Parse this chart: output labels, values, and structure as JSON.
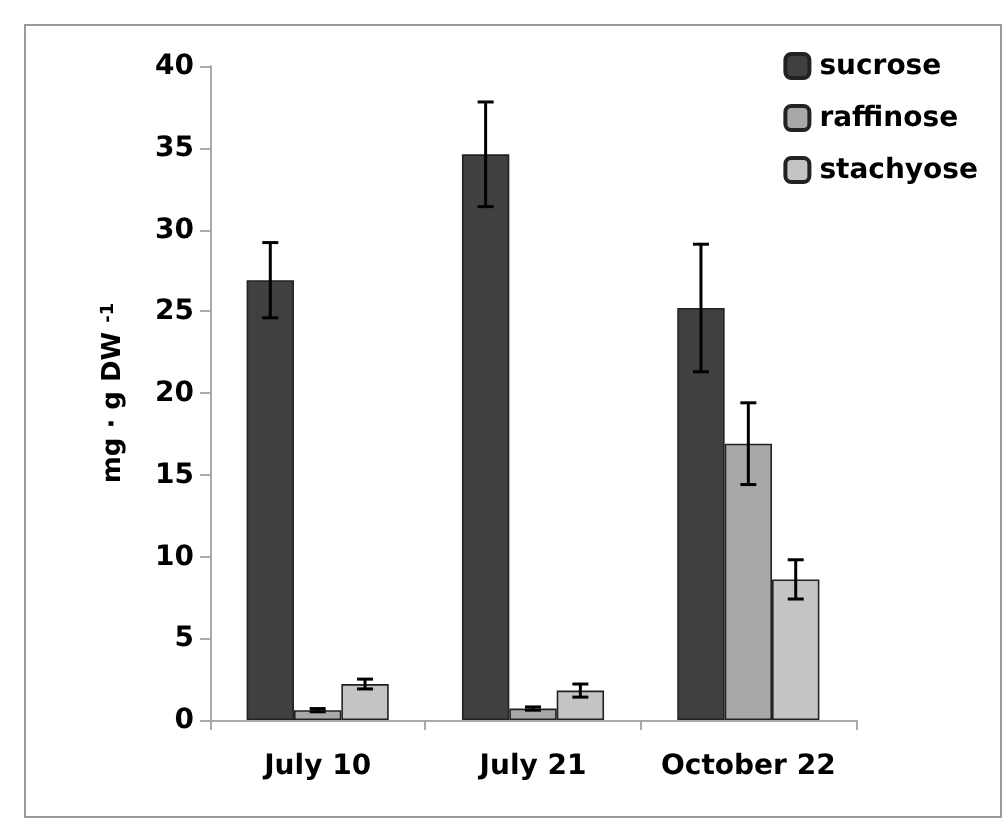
{
  "chart_data": {
    "type": "bar",
    "ylabel": "mg · g DW $^{-1}$",
    "categories": [
      "July 10",
      "July 21",
      "October 22"
    ],
    "series": [
      {
        "name": "sucrose",
        "color": "#404040",
        "values": [
          26.9,
          34.6,
          25.2
        ],
        "errors": [
          2.3,
          3.2,
          3.9
        ]
      },
      {
        "name": "raffinose",
        "color": "#a8a8a8",
        "values": [
          0.6,
          0.7,
          16.9
        ],
        "errors": [
          0.1,
          0.1,
          2.5
        ]
      },
      {
        "name": "stachyose",
        "color": "#c4c4c4",
        "values": [
          2.2,
          1.8,
          8.6
        ],
        "errors": [
          0.3,
          0.4,
          1.2
        ]
      }
    ],
    "ylim": [
      0,
      40
    ],
    "yticks": [
      0,
      5,
      10,
      15,
      20,
      25,
      30,
      35,
      40
    ],
    "grid": false,
    "legend": "top right"
  }
}
